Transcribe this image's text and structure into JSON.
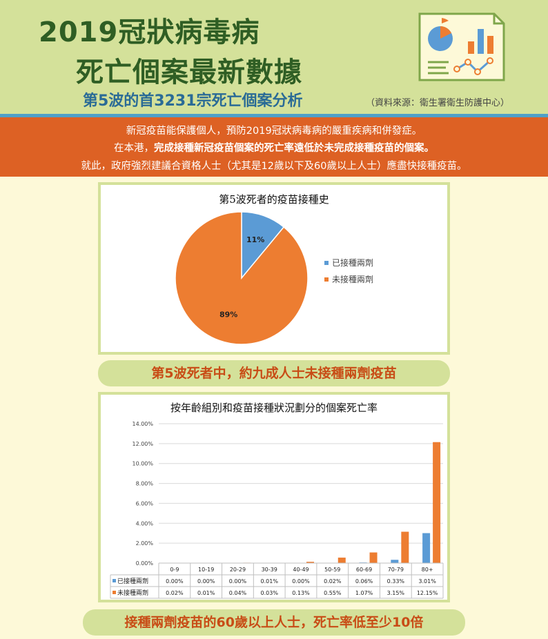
{
  "header": {
    "title_line1": "2019冠狀病毒病",
    "title_line2": "死亡個案最新數據",
    "subtitle": "第5波的首3231宗死亡個案分析",
    "source": "（資料來源：衛生署衛生防護中心）"
  },
  "banner": {
    "line1": "新冠疫苗能保護個人，預防2019冠狀病毒病的嚴重疾病和併發症。",
    "line2_pre": "在本港，",
    "line2_bold": "完成接種新冠疫苗個案的死亡率遠低於未完成接種疫苗的個案。",
    "line3": "就此，政府強烈建議合資格人士（尤其是12歲以下及60歲以上人士）應盡快接種疫苗。"
  },
  "pill1": "第5波死者中，約九成人士未接種兩劑疫苗",
  "pill2": "接種兩劑疫苗的60歲以上人士，死亡率低至少10倍",
  "chart_data": [
    {
      "type": "pie",
      "title": "第5波死者的疫苗接種史",
      "labels": [
        "已接種兩劑",
        "未接種兩劑"
      ],
      "values": [
        11,
        89
      ],
      "value_labels": [
        "11%",
        "89%"
      ],
      "colors": [
        "#5b9bd5",
        "#ed7d31"
      ],
      "legend": "right"
    },
    {
      "type": "bar",
      "title": "按年齡組別和疫苗接種狀況劃分的個案死亡率",
      "categories": [
        "0-9",
        "10-19",
        "20-29",
        "30-39",
        "40-49",
        "50-59",
        "60-69",
        "70-79",
        "80+"
      ],
      "series": [
        {
          "name": "已接種兩劑",
          "values": [
            0.0,
            0.0,
            0.0,
            0.01,
            0.0,
            0.02,
            0.06,
            0.33,
            3.01
          ],
          "labels": [
            "0.00%",
            "0.00%",
            "0.00%",
            "0.01%",
            "0.00%",
            "0.02%",
            "0.06%",
            "0.33%",
            "3.01%"
          ],
          "color": "#5b9bd5"
        },
        {
          "name": "未接種兩劑",
          "values": [
            0.02,
            0.01,
            0.04,
            0.03,
            0.13,
            0.55,
            1.07,
            3.15,
            12.15
          ],
          "labels": [
            "0.02%",
            "0.01%",
            "0.04%",
            "0.03%",
            "0.13%",
            "0.55%",
            "1.07%",
            "3.15%",
            "12.15%"
          ],
          "color": "#ed7d31"
        }
      ],
      "ylim": [
        0,
        14
      ],
      "yticks": [
        "0.00%",
        "2.00%",
        "4.00%",
        "6.00%",
        "8.00%",
        "10.00%",
        "12.00%",
        "14.00%"
      ],
      "grid": true,
      "legend": "data-table"
    }
  ]
}
